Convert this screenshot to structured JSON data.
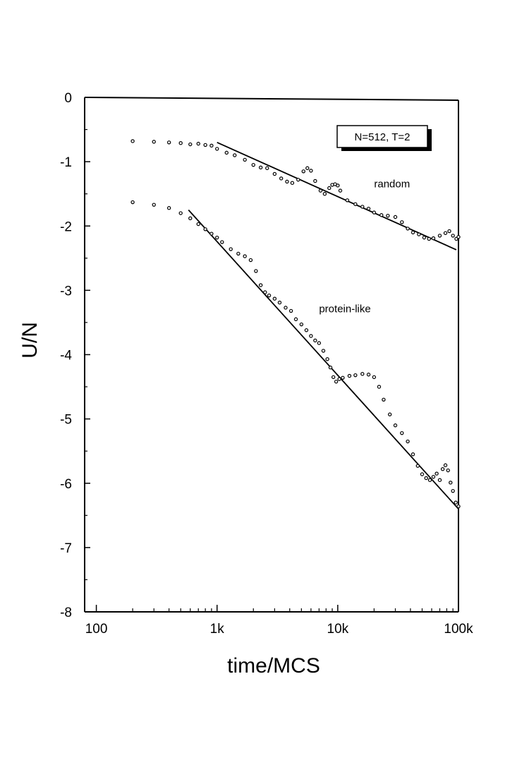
{
  "chart_data": {
    "type": "scatter",
    "title": "",
    "xlabel": "time/MCS",
    "ylabel": "U/N",
    "x_scale": "log",
    "xlim": [
      80,
      100000
    ],
    "ylim": [
      -8,
      0
    ],
    "x_ticks": [
      {
        "value": 100,
        "label": "100"
      },
      {
        "value": 1000,
        "label": "1k"
      },
      {
        "value": 10000,
        "label": "10k"
      },
      {
        "value": 100000,
        "label": "100k"
      }
    ],
    "y_ticks": [
      {
        "value": 0,
        "label": "0"
      },
      {
        "value": -1,
        "label": "-1"
      },
      {
        "value": -2,
        "label": "-2"
      },
      {
        "value": -3,
        "label": "-3"
      },
      {
        "value": -4,
        "label": "-4"
      },
      {
        "value": -5,
        "label": "-5"
      },
      {
        "value": -6,
        "label": "-6"
      },
      {
        "value": -7,
        "label": "-7"
      },
      {
        "value": -8,
        "label": "-8"
      }
    ],
    "legend_box": "N=512, T=2",
    "grid": false,
    "series": [
      {
        "name": "random",
        "points": [
          [
            200,
            -0.68
          ],
          [
            300,
            -0.69
          ],
          [
            400,
            -0.7
          ],
          [
            500,
            -0.71
          ],
          [
            600,
            -0.73
          ],
          [
            700,
            -0.72
          ],
          [
            800,
            -0.74
          ],
          [
            900,
            -0.75
          ],
          [
            1000,
            -0.8
          ],
          [
            1200,
            -0.86
          ],
          [
            1400,
            -0.9
          ],
          [
            1700,
            -0.97
          ],
          [
            2000,
            -1.05
          ],
          [
            2300,
            -1.09
          ],
          [
            2600,
            -1.1
          ],
          [
            3000,
            -1.19
          ],
          [
            3400,
            -1.26
          ],
          [
            3800,
            -1.31
          ],
          [
            4200,
            -1.33
          ],
          [
            4700,
            -1.28
          ],
          [
            5200,
            -1.15
          ],
          [
            5600,
            -1.1
          ],
          [
            6000,
            -1.14
          ],
          [
            6500,
            -1.3
          ],
          [
            7200,
            -1.45
          ],
          [
            7800,
            -1.5
          ],
          [
            8500,
            -1.41
          ],
          [
            9000,
            -1.36
          ],
          [
            9500,
            -1.35
          ],
          [
            10000,
            -1.37
          ],
          [
            10500,
            -1.45
          ],
          [
            12000,
            -1.6
          ],
          [
            14000,
            -1.66
          ],
          [
            16000,
            -1.7
          ],
          [
            18000,
            -1.73
          ],
          [
            20000,
            -1.79
          ],
          [
            23000,
            -1.83
          ],
          [
            26000,
            -1.84
          ],
          [
            30000,
            -1.86
          ],
          [
            34000,
            -1.94
          ],
          [
            38000,
            -2.04
          ],
          [
            42000,
            -2.1
          ],
          [
            47000,
            -2.13
          ],
          [
            52000,
            -2.18
          ],
          [
            57000,
            -2.2
          ],
          [
            62000,
            -2.19
          ],
          [
            70000,
            -2.15
          ],
          [
            78000,
            -2.11
          ],
          [
            84000,
            -2.08
          ],
          [
            90000,
            -2.15
          ],
          [
            96000,
            -2.2
          ],
          [
            100000,
            -2.17
          ]
        ],
        "fit": {
          "x": [
            1000,
            96000
          ],
          "y": [
            -0.7,
            -2.37
          ]
        }
      },
      {
        "name": "protein-like",
        "points": [
          [
            200,
            -1.63
          ],
          [
            300,
            -1.67
          ],
          [
            400,
            -1.72
          ],
          [
            500,
            -1.8
          ],
          [
            600,
            -1.88
          ],
          [
            700,
            -1.97
          ],
          [
            800,
            -2.05
          ],
          [
            900,
            -2.12
          ],
          [
            1000,
            -2.18
          ],
          [
            1100,
            -2.25
          ],
          [
            1300,
            -2.36
          ],
          [
            1500,
            -2.43
          ],
          [
            1700,
            -2.47
          ],
          [
            1900,
            -2.53
          ],
          [
            2100,
            -2.7
          ],
          [
            2300,
            -2.92
          ],
          [
            2500,
            -3.03
          ],
          [
            2700,
            -3.08
          ],
          [
            3000,
            -3.13
          ],
          [
            3300,
            -3.19
          ],
          [
            3700,
            -3.27
          ],
          [
            4100,
            -3.32
          ],
          [
            4500,
            -3.45
          ],
          [
            5000,
            -3.53
          ],
          [
            5500,
            -3.62
          ],
          [
            6000,
            -3.71
          ],
          [
            6500,
            -3.78
          ],
          [
            7000,
            -3.82
          ],
          [
            7600,
            -3.94
          ],
          [
            8200,
            -4.07
          ],
          [
            8700,
            -4.2
          ],
          [
            9200,
            -4.35
          ],
          [
            9700,
            -4.42
          ],
          [
            10300,
            -4.38
          ],
          [
            11000,
            -4.36
          ],
          [
            12500,
            -4.33
          ],
          [
            14000,
            -4.32
          ],
          [
            16000,
            -4.3
          ],
          [
            18000,
            -4.31
          ],
          [
            20000,
            -4.35
          ],
          [
            22000,
            -4.5
          ],
          [
            24000,
            -4.7
          ],
          [
            27000,
            -4.93
          ],
          [
            30000,
            -5.1
          ],
          [
            34000,
            -5.22
          ],
          [
            38000,
            -5.35
          ],
          [
            42000,
            -5.55
          ],
          [
            46000,
            -5.73
          ],
          [
            50000,
            -5.86
          ],
          [
            54000,
            -5.92
          ],
          [
            58000,
            -5.95
          ],
          [
            62000,
            -5.9
          ],
          [
            66000,
            -5.85
          ],
          [
            70000,
            -5.95
          ],
          [
            74000,
            -5.78
          ],
          [
            78000,
            -5.72
          ],
          [
            82000,
            -5.8
          ],
          [
            86000,
            -5.99
          ],
          [
            90000,
            -6.12
          ],
          [
            95000,
            -6.3
          ],
          [
            100000,
            -6.36
          ]
        ],
        "fit": {
          "x": [
            580,
            100000
          ],
          "y": [
            -1.75,
            -6.4
          ]
        }
      }
    ],
    "annotations": [
      {
        "text": "random",
        "x": 20000,
        "y": -1.4
      },
      {
        "text": "protein-like",
        "x": 7000,
        "y": -3.34
      }
    ]
  }
}
